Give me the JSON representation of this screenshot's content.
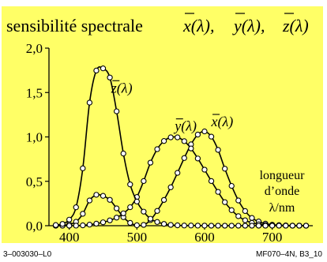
{
  "chart_data": {
    "type": "line",
    "title": "sensibilité spectrale",
    "title_symbols": [
      "x(λ),",
      "y(λ),",
      "z(λ)"
    ],
    "xlim": [
      370,
      760
    ],
    "ylim": [
      0,
      2.0
    ],
    "x_ticks": [
      400,
      500,
      600,
      700
    ],
    "y_ticks": [
      {
        "v": 0,
        "label": "0,0"
      },
      {
        "v": 0.5,
        "label": "0,5"
      },
      {
        "v": 1.0,
        "label": "1,0"
      },
      {
        "v": 1.5,
        "label": "1,5"
      },
      {
        "v": 2.0,
        "label": "2,0"
      }
    ],
    "axis_label_lines": [
      "longueur",
      "d’onde",
      "λ/nm"
    ],
    "background_color": "#ffff66",
    "series": [
      {
        "name": "x(λ)",
        "x": [
          380,
          390,
          400,
          410,
          420,
          430,
          440,
          450,
          460,
          470,
          480,
          490,
          500,
          510,
          520,
          530,
          540,
          550,
          560,
          570,
          580,
          590,
          600,
          610,
          620,
          630,
          640,
          650,
          660,
          670,
          680,
          690,
          700,
          710,
          720,
          730,
          740,
          750
        ],
        "values": [
          0.001,
          0.004,
          0.014,
          0.044,
          0.134,
          0.284,
          0.348,
          0.336,
          0.291,
          0.195,
          0.096,
          0.032,
          0.005,
          0.009,
          0.063,
          0.166,
          0.29,
          0.433,
          0.595,
          0.762,
          0.916,
          1.026,
          1.062,
          1.003,
          0.854,
          0.642,
          0.448,
          0.284,
          0.165,
          0.087,
          0.047,
          0.023,
          0.011,
          0.006,
          0.003,
          0.001,
          0.001,
          0.0
        ]
      },
      {
        "name": "y(λ)",
        "x": [
          380,
          390,
          400,
          410,
          420,
          430,
          440,
          450,
          460,
          470,
          480,
          490,
          500,
          510,
          520,
          530,
          540,
          550,
          560,
          570,
          580,
          590,
          600,
          610,
          620,
          630,
          640,
          650,
          660,
          670,
          680,
          690,
          700,
          710,
          720,
          730,
          740,
          750
        ],
        "values": [
          0.0,
          0.0,
          0.0,
          0.001,
          0.004,
          0.012,
          0.023,
          0.038,
          0.06,
          0.091,
          0.139,
          0.208,
          0.323,
          0.503,
          0.71,
          0.862,
          0.954,
          0.995,
          0.995,
          0.952,
          0.87,
          0.757,
          0.631,
          0.503,
          0.381,
          0.265,
          0.175,
          0.107,
          0.061,
          0.032,
          0.017,
          0.008,
          0.004,
          0.002,
          0.001,
          0.0,
          0.0,
          0.0
        ]
      },
      {
        "name": "z(λ)",
        "x": [
          380,
          390,
          400,
          410,
          420,
          430,
          440,
          450,
          460,
          470,
          480,
          490,
          500,
          510,
          520,
          530,
          540,
          550,
          560,
          570,
          580,
          590,
          600,
          610,
          620,
          630,
          640,
          650,
          660,
          670,
          680,
          690,
          700,
          710,
          720,
          730,
          740,
          750
        ],
        "values": [
          0.007,
          0.02,
          0.068,
          0.207,
          0.646,
          1.386,
          1.747,
          1.772,
          1.669,
          1.288,
          0.813,
          0.465,
          0.272,
          0.158,
          0.078,
          0.042,
          0.02,
          0.009,
          0.004,
          0.002,
          0.002,
          0.001,
          0.001,
          0.0,
          0.0,
          0.0,
          0.0,
          0.0,
          0.0,
          0.0,
          0.0,
          0.0,
          0.0,
          0.0,
          0.0,
          0.0,
          0.0,
          0.0
        ]
      }
    ],
    "series_labels": [
      {
        "series": "z(λ)",
        "text": "z(λ)",
        "x": 462,
        "y": 1.5
      },
      {
        "series": "y(λ)",
        "text": "y(λ)",
        "x": 556,
        "y": 1.07
      },
      {
        "series": "x(λ)",
        "text": "x(λ)",
        "x": 610,
        "y": 1.12
      }
    ]
  },
  "footer": {
    "left": "3–003030–L0",
    "right": "MF070–4N, B3_10"
  }
}
